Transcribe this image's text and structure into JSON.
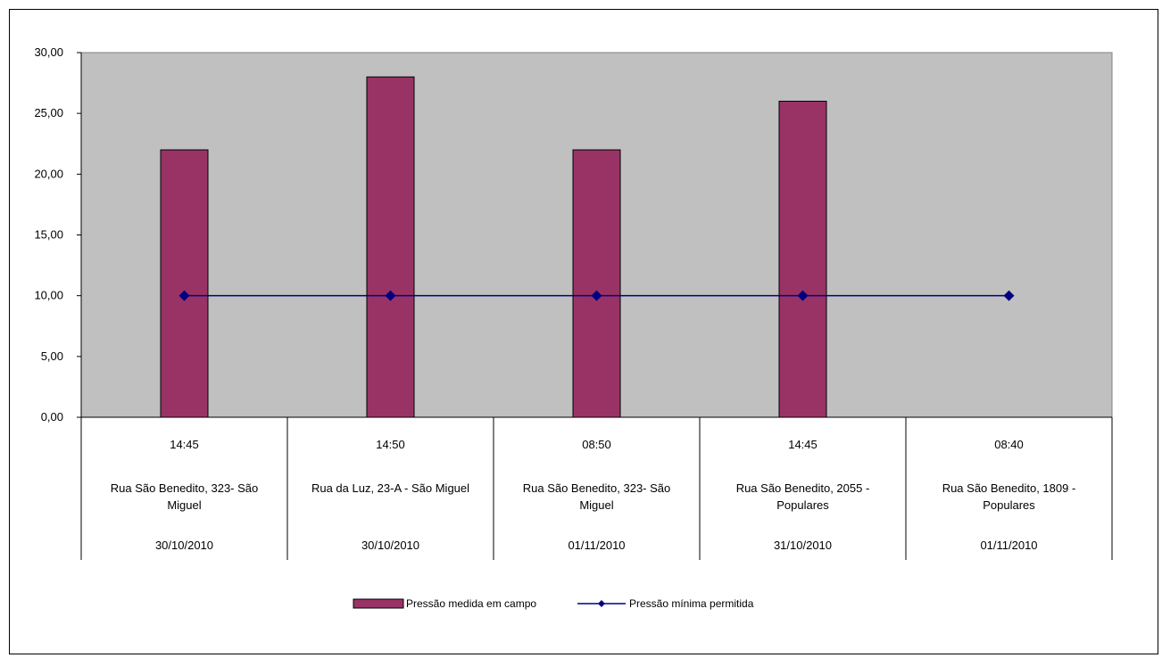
{
  "chart_data": {
    "type": "bar",
    "ylim": [
      0,
      30
    ],
    "y_ticks": [
      "0,00",
      "5,00",
      "10,00",
      "15,00",
      "20,00",
      "25,00",
      "30,00"
    ],
    "y_tick_values": [
      0,
      5,
      10,
      15,
      20,
      25,
      30
    ],
    "grid": false,
    "legend_position": "bottom",
    "categories": [
      {
        "time": "14:45",
        "address": [
          "Rua São Benedito, 323- São",
          "Miguel"
        ],
        "date": "30/10/2010"
      },
      {
        "time": "14:50",
        "address": [
          "Rua da Luz, 23-A - São Miguel"
        ],
        "date": "30/10/2010"
      },
      {
        "time": "08:50",
        "address": [
          "Rua São Benedito, 323- São",
          "Miguel"
        ],
        "date": "01/11/2010"
      },
      {
        "time": "14:45",
        "address": [
          "Rua São Benedito, 2055 -",
          "Populares"
        ],
        "date": "31/10/2010"
      },
      {
        "time": "08:40",
        "address": [
          "Rua São Benedito, 1809 -",
          "Populares"
        ],
        "date": "01/11/2010"
      }
    ],
    "series": [
      {
        "name": "Pressão medida em campo",
        "type": "bar",
        "color": "#993366",
        "values": [
          22,
          28,
          22,
          26,
          null
        ]
      },
      {
        "name": "Pressão mínima permitida",
        "type": "line",
        "color": "#000080",
        "marker": "diamond",
        "values": [
          10,
          10,
          10,
          10,
          10
        ]
      }
    ],
    "plot_background": "#c0c0c0"
  }
}
